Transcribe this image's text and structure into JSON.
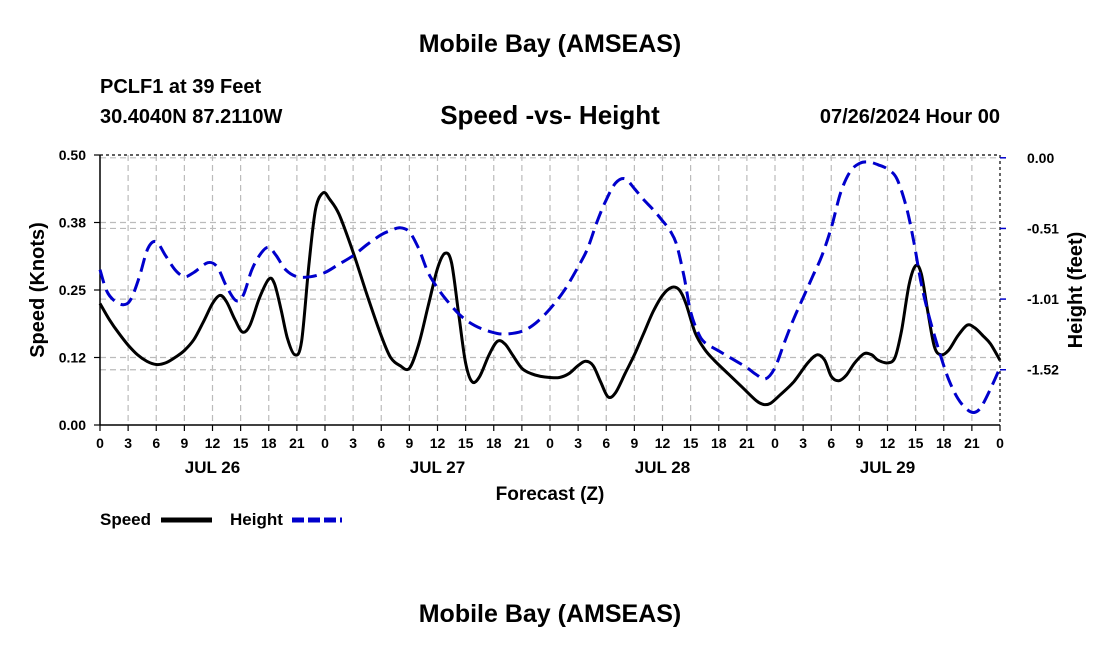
{
  "header": {
    "title": "Mobile Bay (AMSEAS)",
    "station": "PCLF1 at 39 Feet",
    "coordinates": "30.4040N  87.2110W",
    "subtitle": "Speed -vs- Height",
    "run_time": "07/26/2024 Hour 00"
  },
  "footer": {
    "title": "Mobile Bay (AMSEAS)"
  },
  "colors": {
    "speed": "#000000",
    "height": "#0000cc",
    "grid": "#bbbbbb"
  },
  "chart_data": {
    "type": "line",
    "title": "Speed -vs- Height",
    "xlabel": "Forecast (Z)",
    "ylabel_left": "Speed (Knots)",
    "ylabel_right": "Height (feet)",
    "xlim": [
      0,
      96
    ],
    "ylim_left": [
      0,
      0.5
    ],
    "ylim_right": [
      -1.91,
      0.02
    ],
    "left_ticks": [
      0,
      0.125,
      0.25,
      0.375,
      0.5
    ],
    "left_tick_labels": [
      "0.00",
      "0.12",
      "0.25",
      "0.38",
      "0.50"
    ],
    "right_ticks": [
      0,
      -0.505,
      -1.01,
      -1.515
    ],
    "right_tick_labels": [
      "0.00",
      "-0.51",
      "-1.01",
      "-1.52"
    ],
    "x_ticks": [
      0,
      3,
      6,
      9,
      12,
      15,
      18,
      21,
      24,
      27,
      30,
      33,
      36,
      39,
      42,
      45,
      48,
      51,
      54,
      57,
      60,
      63,
      66,
      69,
      72,
      75,
      78,
      81,
      84,
      87,
      90,
      93,
      96
    ],
    "x_tick_labels": [
      "0",
      "3",
      "6",
      "9",
      "12",
      "15",
      "18",
      "21",
      "0",
      "3",
      "6",
      "9",
      "12",
      "15",
      "18",
      "21",
      "0",
      "3",
      "6",
      "9",
      "12",
      "15",
      "18",
      "21",
      "0",
      "3",
      "6",
      "9",
      "12",
      "15",
      "18",
      "21",
      "0"
    ],
    "day_labels": [
      {
        "x": 12,
        "label": "JUL 26"
      },
      {
        "x": 36,
        "label": "JUL 27"
      },
      {
        "x": 60,
        "label": "JUL 28"
      },
      {
        "x": 84,
        "label": "JUL 29"
      }
    ],
    "grid": true,
    "legend": {
      "position": "bottom-left",
      "speed_label": "Speed",
      "height_label": "Height"
    },
    "series": [
      {
        "name": "Speed",
        "axis": "left",
        "style": "solid",
        "points": [
          [
            0,
            0.225
          ],
          [
            1,
            0.195
          ],
          [
            2,
            0.17
          ],
          [
            3,
            0.148
          ],
          [
            4,
            0.13
          ],
          [
            5,
            0.118
          ],
          [
            6,
            0.112
          ],
          [
            7,
            0.115
          ],
          [
            8,
            0.125
          ],
          [
            9,
            0.138
          ],
          [
            10,
            0.158
          ],
          [
            11,
            0.19
          ],
          [
            12,
            0.225
          ],
          [
            12.8,
            0.24
          ],
          [
            13.5,
            0.228
          ],
          [
            14.4,
            0.195
          ],
          [
            15.2,
            0.172
          ],
          [
            16,
            0.185
          ],
          [
            17,
            0.235
          ],
          [
            18,
            0.27
          ],
          [
            18.6,
            0.262
          ],
          [
            19.3,
            0.215
          ],
          [
            20,
            0.16
          ],
          [
            20.8,
            0.13
          ],
          [
            21.5,
            0.155
          ],
          [
            22.3,
            0.3
          ],
          [
            23,
            0.4
          ],
          [
            23.8,
            0.43
          ],
          [
            24.5,
            0.418
          ],
          [
            25.5,
            0.39
          ],
          [
            27,
            0.32
          ],
          [
            28.5,
            0.24
          ],
          [
            30,
            0.165
          ],
          [
            31,
            0.125
          ],
          [
            32,
            0.11
          ],
          [
            33,
            0.105
          ],
          [
            34,
            0.15
          ],
          [
            35,
            0.22
          ],
          [
            36,
            0.29
          ],
          [
            36.8,
            0.318
          ],
          [
            37.5,
            0.3
          ],
          [
            38.3,
            0.2
          ],
          [
            39,
            0.115
          ],
          [
            39.7,
            0.08
          ],
          [
            40.5,
            0.09
          ],
          [
            41.5,
            0.13
          ],
          [
            42.4,
            0.155
          ],
          [
            43.2,
            0.15
          ],
          [
            44,
            0.13
          ],
          [
            45,
            0.105
          ],
          [
            46,
            0.095
          ],
          [
            47,
            0.09
          ],
          [
            48,
            0.088
          ],
          [
            49,
            0.088
          ],
          [
            50,
            0.095
          ],
          [
            51,
            0.11
          ],
          [
            51.8,
            0.118
          ],
          [
            52.6,
            0.11
          ],
          [
            53.4,
            0.08
          ],
          [
            54.2,
            0.052
          ],
          [
            55,
            0.06
          ],
          [
            56,
            0.095
          ],
          [
            57,
            0.13
          ],
          [
            58,
            0.17
          ],
          [
            59,
            0.21
          ],
          [
            60,
            0.24
          ],
          [
            61,
            0.255
          ],
          [
            61.8,
            0.25
          ],
          [
            62.5,
            0.225
          ],
          [
            63.5,
            0.17
          ],
          [
            64.5,
            0.14
          ],
          [
            65.5,
            0.12
          ],
          [
            67,
            0.095
          ],
          [
            68.5,
            0.07
          ],
          [
            70,
            0.045
          ],
          [
            70.8,
            0.038
          ],
          [
            71.5,
            0.04
          ],
          [
            72.5,
            0.055
          ],
          [
            74,
            0.08
          ],
          [
            75.5,
            0.115
          ],
          [
            76.5,
            0.13
          ],
          [
            77.3,
            0.12
          ],
          [
            78,
            0.09
          ],
          [
            78.8,
            0.082
          ],
          [
            79.6,
            0.092
          ],
          [
            80.5,
            0.115
          ],
          [
            81.5,
            0.132
          ],
          [
            82.3,
            0.13
          ],
          [
            83,
            0.12
          ],
          [
            84,
            0.115
          ],
          [
            84.8,
            0.125
          ],
          [
            85.5,
            0.175
          ],
          [
            86.3,
            0.26
          ],
          [
            87,
            0.295
          ],
          [
            87.6,
            0.28
          ],
          [
            88.3,
            0.21
          ],
          [
            89,
            0.145
          ],
          [
            89.7,
            0.13
          ],
          [
            90.5,
            0.138
          ],
          [
            91.5,
            0.165
          ],
          [
            92.5,
            0.185
          ],
          [
            93.3,
            0.18
          ],
          [
            94.2,
            0.165
          ],
          [
            95,
            0.15
          ],
          [
            96,
            0.12
          ]
        ]
      },
      {
        "name": "Height",
        "axis": "right",
        "style": "dashed",
        "points": [
          [
            0,
            -0.8
          ],
          [
            0.7,
            -0.95
          ],
          [
            1.5,
            -1.02
          ],
          [
            2.5,
            -1.05
          ],
          [
            3.3,
            -1.01
          ],
          [
            4.2,
            -0.85
          ],
          [
            5.1,
            -0.65
          ],
          [
            6,
            -0.6
          ],
          [
            7,
            -0.7
          ],
          [
            8,
            -0.8
          ],
          [
            9,
            -0.85
          ],
          [
            10,
            -0.82
          ],
          [
            11.5,
            -0.75
          ],
          [
            12.5,
            -0.78
          ],
          [
            13.5,
            -0.92
          ],
          [
            14.5,
            -1.02
          ],
          [
            15.3,
            -0.98
          ],
          [
            16.2,
            -0.8
          ],
          [
            17.2,
            -0.68
          ],
          [
            18,
            -0.64
          ],
          [
            18.8,
            -0.7
          ],
          [
            19.8,
            -0.8
          ],
          [
            21,
            -0.85
          ],
          [
            22.5,
            -0.85
          ],
          [
            24,
            -0.82
          ],
          [
            25.5,
            -0.76
          ],
          [
            27,
            -0.7
          ],
          [
            28.5,
            -0.62
          ],
          [
            30,
            -0.55
          ],
          [
            31,
            -0.52
          ],
          [
            32,
            -0.5
          ],
          [
            33,
            -0.53
          ],
          [
            34,
            -0.65
          ],
          [
            35,
            -0.82
          ],
          [
            36,
            -0.93
          ],
          [
            37,
            -1.02
          ],
          [
            38.5,
            -1.13
          ],
          [
            40,
            -1.2
          ],
          [
            41.5,
            -1.24
          ],
          [
            43,
            -1.26
          ],
          [
            45,
            -1.24
          ],
          [
            46.5,
            -1.18
          ],
          [
            48,
            -1.08
          ],
          [
            49.5,
            -0.95
          ],
          [
            51,
            -0.78
          ],
          [
            52,
            -0.65
          ],
          [
            53,
            -0.46
          ],
          [
            54,
            -0.3
          ],
          [
            55,
            -0.18
          ],
          [
            56,
            -0.15
          ],
          [
            57,
            -0.22
          ],
          [
            58,
            -0.3
          ],
          [
            59,
            -0.37
          ],
          [
            60,
            -0.45
          ],
          [
            60.8,
            -0.52
          ],
          [
            61.5,
            -0.62
          ],
          [
            62.3,
            -0.85
          ],
          [
            63,
            -1.1
          ],
          [
            63.8,
            -1.25
          ],
          [
            64.5,
            -1.32
          ],
          [
            66,
            -1.38
          ],
          [
            67.5,
            -1.44
          ],
          [
            69,
            -1.5
          ],
          [
            70,
            -1.55
          ],
          [
            71,
            -1.58
          ],
          [
            72,
            -1.5
          ],
          [
            73,
            -1.32
          ],
          [
            74,
            -1.15
          ],
          [
            75,
            -1.0
          ],
          [
            76,
            -0.85
          ],
          [
            77,
            -0.7
          ],
          [
            78,
            -0.5
          ],
          [
            79,
            -0.25
          ],
          [
            80,
            -0.1
          ],
          [
            81,
            -0.04
          ],
          [
            82,
            -0.03
          ],
          [
            83,
            -0.05
          ],
          [
            84,
            -0.08
          ],
          [
            85,
            -0.15
          ],
          [
            86,
            -0.35
          ],
          [
            86.8,
            -0.6
          ],
          [
            87.6,
            -0.9
          ],
          [
            88.5,
            -1.15
          ],
          [
            89.5,
            -1.38
          ],
          [
            90.5,
            -1.58
          ],
          [
            91.5,
            -1.72
          ],
          [
            92.5,
            -1.8
          ],
          [
            93.3,
            -1.82
          ],
          [
            94,
            -1.78
          ],
          [
            95,
            -1.65
          ],
          [
            96,
            -1.5
          ]
        ]
      }
    ]
  }
}
